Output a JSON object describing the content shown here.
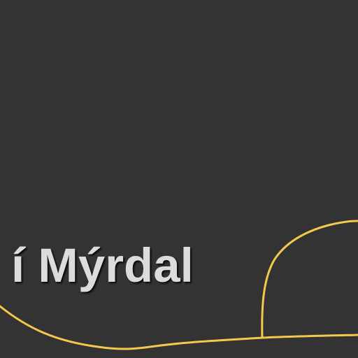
{
  "image": {
    "text": "í Mýrdal"
  },
  "colors": {
    "background": "#333333",
    "text": "#dcdcdc",
    "text_shadow": "#000000",
    "curve": "#f2c94c"
  }
}
